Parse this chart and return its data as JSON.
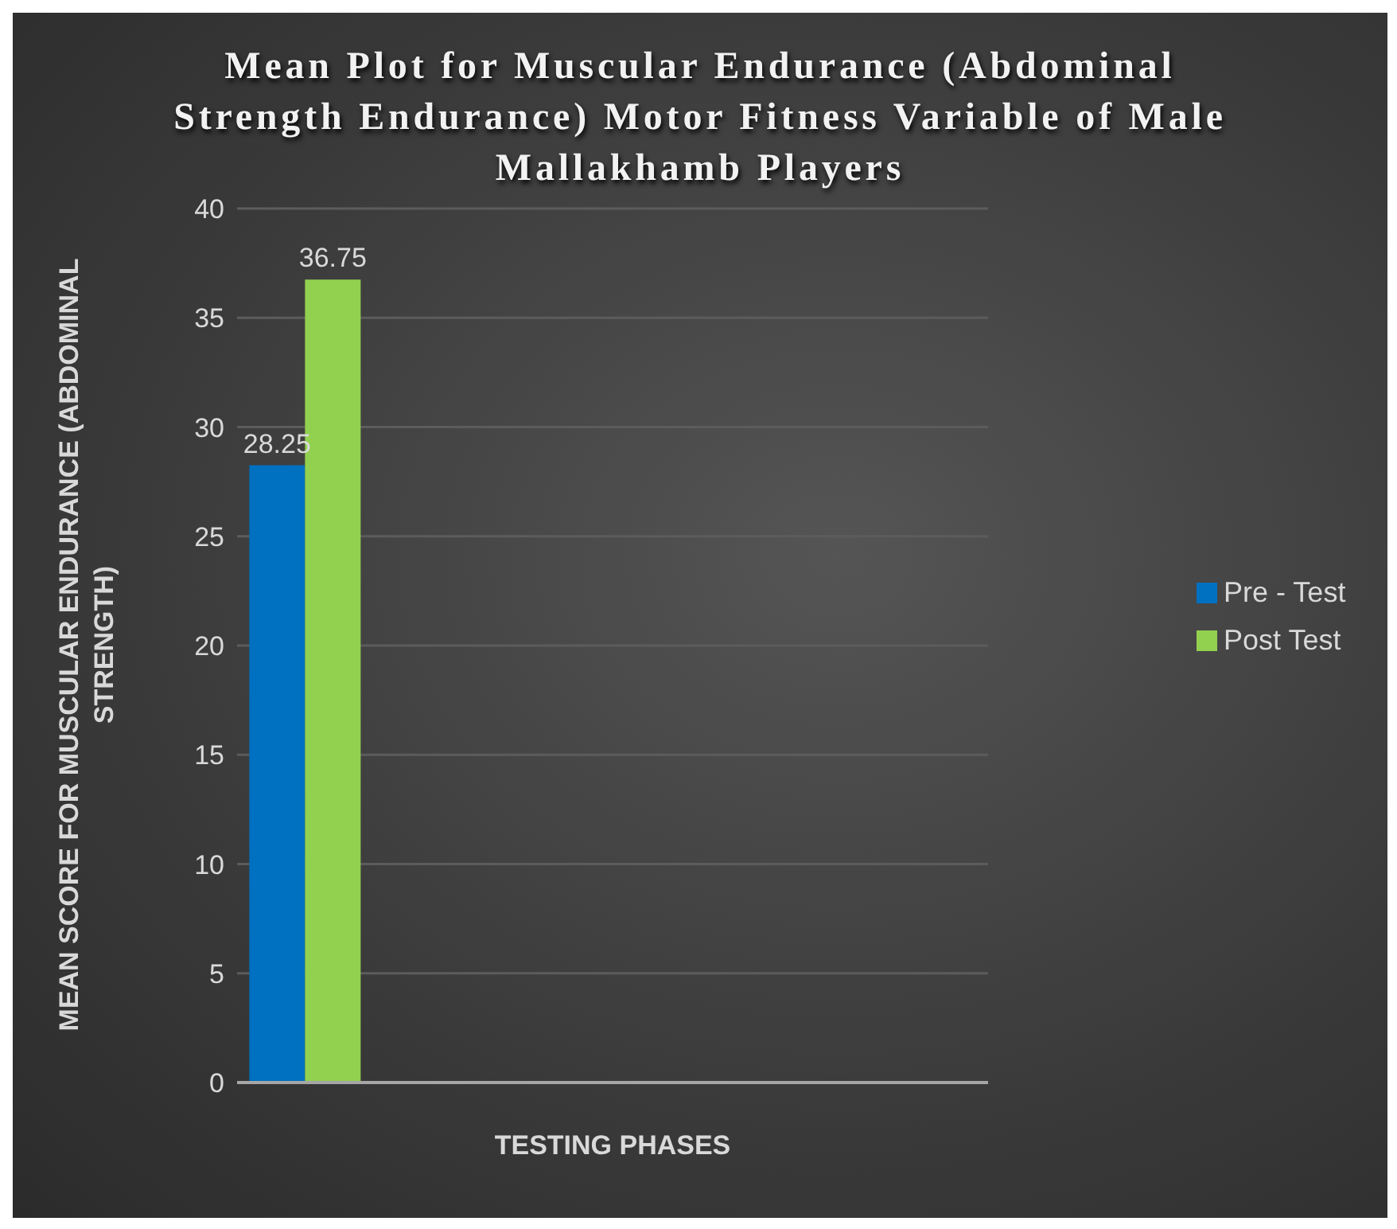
{
  "chart_data": {
    "type": "bar",
    "title": "Mean Plot for Muscular Endurance (Abdominal Strength Endurance) Motor Fitness Variable of Male Mallakhamb Players",
    "xlabel": "TESTING PHASES",
    "ylabel": "MEAN SCORE FOR MUSCULAR ENDURANCE (ABDOMINAL STRENGTH)",
    "categories": [
      null
    ],
    "series": [
      {
        "name": "Pre - Test",
        "color": "#0070c0",
        "values": [
          28.25
        ]
      },
      {
        "name": "Post Test",
        "color": "#92d050",
        "values": [
          36.75
        ]
      }
    ],
    "ylim": [
      0,
      40
    ],
    "yticks": [
      0,
      5,
      10,
      15,
      20,
      25,
      30,
      35,
      40
    ],
    "grid": "y",
    "legend": "right",
    "data_labels": true
  }
}
